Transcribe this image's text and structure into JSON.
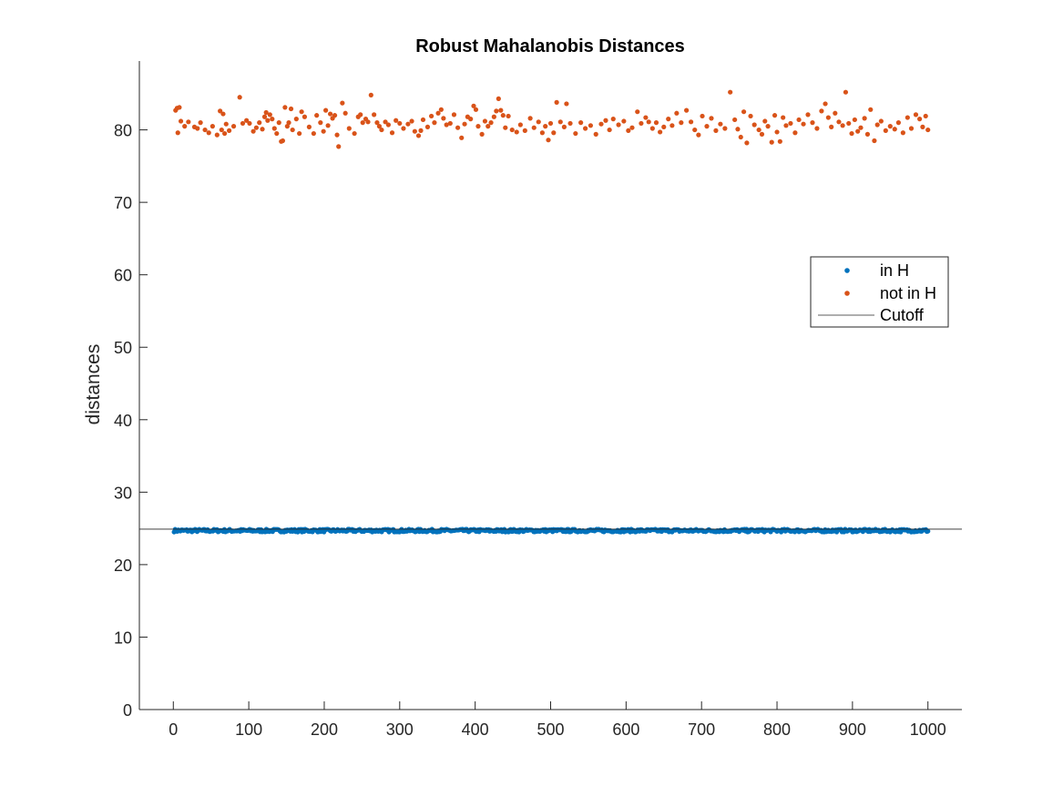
{
  "chart_data": {
    "type": "scatter",
    "title": "Robust Mahalanobis Distances",
    "xlabel": "",
    "ylabel": "distances",
    "xlim": [
      -45,
      1045
    ],
    "ylim": [
      0,
      89.5
    ],
    "x_ticks": [
      0,
      100,
      200,
      300,
      400,
      500,
      600,
      700,
      800,
      900,
      1000
    ],
    "y_ticks": [
      0,
      10,
      20,
      30,
      40,
      50,
      60,
      70,
      80
    ],
    "grid": false,
    "legend_position": "right",
    "series": [
      {
        "name": "in H",
        "color": "#0072BD",
        "marker": "dot",
        "x_start": 1,
        "x_end": 1000,
        "count": 720,
        "y_center": 24.7,
        "y_spread": 0.2
      },
      {
        "name": "not in H",
        "color": "#D95319",
        "marker": "dot",
        "points": [
          [
            3,
            82.7
          ],
          [
            5,
            83.0
          ],
          [
            6,
            79.6
          ],
          [
            8,
            83.1
          ],
          [
            10,
            81.2
          ],
          [
            15,
            80.5
          ],
          [
            20,
            81.1
          ],
          [
            28,
            80.4
          ],
          [
            32,
            80.2
          ],
          [
            36,
            81.0
          ],
          [
            42,
            80.0
          ],
          [
            47,
            79.6
          ],
          [
            52,
            80.5
          ],
          [
            58,
            79.3
          ],
          [
            62,
            82.6
          ],
          [
            64,
            80.0
          ],
          [
            66,
            82.2
          ],
          [
            68,
            79.5
          ],
          [
            70,
            80.8
          ],
          [
            74,
            79.9
          ],
          [
            80,
            80.5
          ],
          [
            88,
            84.5
          ],
          [
            92,
            80.9
          ],
          [
            97,
            81.3
          ],
          [
            101,
            80.9
          ],
          [
            106,
            79.8
          ],
          [
            110,
            80.3
          ],
          [
            114,
            81.0
          ],
          [
            118,
            80.1
          ],
          [
            121,
            81.8
          ],
          [
            123,
            82.4
          ],
          [
            125,
            81.3
          ],
          [
            128,
            82.1
          ],
          [
            131,
            81.5
          ],
          [
            134,
            80.2
          ],
          [
            137,
            79.5
          ],
          [
            140,
            81.0
          ],
          [
            143,
            78.4
          ],
          [
            145,
            78.5
          ],
          [
            148,
            83.1
          ],
          [
            151,
            80.5
          ],
          [
            153,
            81.0
          ],
          [
            156,
            82.9
          ],
          [
            158,
            80.0
          ],
          [
            163,
            81.5
          ],
          [
            167,
            79.5
          ],
          [
            170,
            82.5
          ],
          [
            174,
            81.8
          ],
          [
            180,
            80.4
          ],
          [
            186,
            79.5
          ],
          [
            190,
            82.0
          ],
          [
            195,
            81.0
          ],
          [
            199,
            79.8
          ],
          [
            202,
            82.7
          ],
          [
            205,
            80.6
          ],
          [
            208,
            82.2
          ],
          [
            211,
            81.6
          ],
          [
            214,
            82.0
          ],
          [
            217,
            79.3
          ],
          [
            219,
            77.7
          ],
          [
            224,
            83.7
          ],
          [
            228,
            82.3
          ],
          [
            233,
            80.2
          ],
          [
            240,
            79.5
          ],
          [
            245,
            81.8
          ],
          [
            248,
            82.1
          ],
          [
            251,
            81.0
          ],
          [
            255,
            81.5
          ],
          [
            258,
            81.1
          ],
          [
            262,
            84.8
          ],
          [
            266,
            82.1
          ],
          [
            270,
            81.0
          ],
          [
            273,
            80.5
          ],
          [
            276,
            80.0
          ],
          [
            281,
            81.1
          ],
          [
            285,
            80.7
          ],
          [
            290,
            79.6
          ],
          [
            295,
            81.3
          ],
          [
            300,
            80.9
          ],
          [
            305,
            80.2
          ],
          [
            311,
            80.8
          ],
          [
            316,
            81.2
          ],
          [
            320,
            79.8
          ],
          [
            325,
            79.2
          ],
          [
            328,
            79.9
          ],
          [
            331,
            81.4
          ],
          [
            337,
            80.4
          ],
          [
            342,
            81.9
          ],
          [
            346,
            81.0
          ],
          [
            351,
            82.3
          ],
          [
            355,
            82.8
          ],
          [
            358,
            81.6
          ],
          [
            362,
            80.7
          ],
          [
            367,
            80.9
          ],
          [
            372,
            82.1
          ],
          [
            377,
            80.3
          ],
          [
            382,
            78.9
          ],
          [
            386,
            80.8
          ],
          [
            390,
            81.8
          ],
          [
            394,
            81.5
          ],
          [
            398,
            83.3
          ],
          [
            401,
            82.8
          ],
          [
            404,
            80.5
          ],
          [
            409,
            79.4
          ],
          [
            413,
            81.2
          ],
          [
            417,
            80.5
          ],
          [
            421,
            81.0
          ],
          [
            425,
            81.8
          ],
          [
            428,
            82.6
          ],
          [
            431,
            84.3
          ],
          [
            434,
            82.7
          ],
          [
            437,
            82.0
          ],
          [
            440,
            80.3
          ],
          [
            444,
            81.9
          ],
          [
            449,
            80.0
          ],
          [
            455,
            79.7
          ],
          [
            460,
            80.7
          ],
          [
            466,
            79.9
          ],
          [
            473,
            81.6
          ],
          [
            478,
            80.3
          ],
          [
            484,
            81.1
          ],
          [
            489,
            79.6
          ],
          [
            493,
            80.5
          ],
          [
            497,
            78.6
          ],
          [
            500,
            80.9
          ],
          [
            504,
            79.6
          ],
          [
            508,
            83.8
          ],
          [
            513,
            81.1
          ],
          [
            518,
            80.4
          ],
          [
            521,
            83.6
          ],
          [
            526,
            80.9
          ],
          [
            533,
            79.5
          ],
          [
            540,
            81.0
          ],
          [
            546,
            80.2
          ],
          [
            553,
            80.6
          ],
          [
            560,
            79.4
          ],
          [
            567,
            80.8
          ],
          [
            573,
            81.3
          ],
          [
            578,
            80.0
          ],
          [
            583,
            81.5
          ],
          [
            590,
            80.7
          ],
          [
            597,
            81.2
          ],
          [
            603,
            79.9
          ],
          [
            608,
            80.3
          ],
          [
            615,
            82.5
          ],
          [
            620,
            80.9
          ],
          [
            626,
            81.7
          ],
          [
            630,
            81.1
          ],
          [
            635,
            80.2
          ],
          [
            640,
            81.0
          ],
          [
            645,
            79.7
          ],
          [
            650,
            80.4
          ],
          [
            656,
            81.5
          ],
          [
            661,
            80.6
          ],
          [
            667,
            82.3
          ],
          [
            673,
            81.0
          ],
          [
            680,
            82.7
          ],
          [
            686,
            81.1
          ],
          [
            691,
            80.0
          ],
          [
            696,
            79.3
          ],
          [
            701,
            81.9
          ],
          [
            707,
            80.5
          ],
          [
            713,
            81.6
          ],
          [
            719,
            79.9
          ],
          [
            725,
            80.8
          ],
          [
            731,
            80.2
          ],
          [
            738,
            85.2
          ],
          [
            744,
            81.4
          ],
          [
            748,
            80.1
          ],
          [
            752,
            79.0
          ],
          [
            756,
            82.5
          ],
          [
            760,
            78.2
          ],
          [
            765,
            81.9
          ],
          [
            770,
            80.7
          ],
          [
            776,
            80.0
          ],
          [
            780,
            79.4
          ],
          [
            784,
            81.2
          ],
          [
            788,
            80.5
          ],
          [
            793,
            78.3
          ],
          [
            797,
            82.0
          ],
          [
            800,
            79.7
          ],
          [
            804,
            78.4
          ],
          [
            808,
            81.7
          ],
          [
            812,
            80.6
          ],
          [
            818,
            80.9
          ],
          [
            824,
            79.6
          ],
          [
            829,
            81.4
          ],
          [
            835,
            80.8
          ],
          [
            841,
            82.1
          ],
          [
            847,
            81.0
          ],
          [
            853,
            80.2
          ],
          [
            859,
            82.6
          ],
          [
            864,
            83.6
          ],
          [
            868,
            81.7
          ],
          [
            872,
            80.4
          ],
          [
            877,
            82.3
          ],
          [
            882,
            81.1
          ],
          [
            887,
            80.6
          ],
          [
            891,
            85.2
          ],
          [
            895,
            80.9
          ],
          [
            899,
            79.5
          ],
          [
            903,
            81.4
          ],
          [
            907,
            79.8
          ],
          [
            911,
            80.3
          ],
          [
            916,
            81.6
          ],
          [
            920,
            79.4
          ],
          [
            924,
            82.8
          ],
          [
            929,
            78.5
          ],
          [
            933,
            80.7
          ],
          [
            938,
            81.2
          ],
          [
            944,
            79.9
          ],
          [
            950,
            80.5
          ],
          [
            956,
            80.1
          ],
          [
            961,
            81.0
          ],
          [
            967,
            79.6
          ],
          [
            973,
            81.7
          ],
          [
            978,
            80.2
          ],
          [
            984,
            82.1
          ],
          [
            989,
            81.5
          ],
          [
            993,
            80.4
          ],
          [
            997,
            81.9
          ],
          [
            1000,
            80.0
          ]
        ]
      }
    ],
    "reference_lines": [
      {
        "name": "Cutoff",
        "y": 24.9,
        "color": "#262626"
      }
    ]
  }
}
